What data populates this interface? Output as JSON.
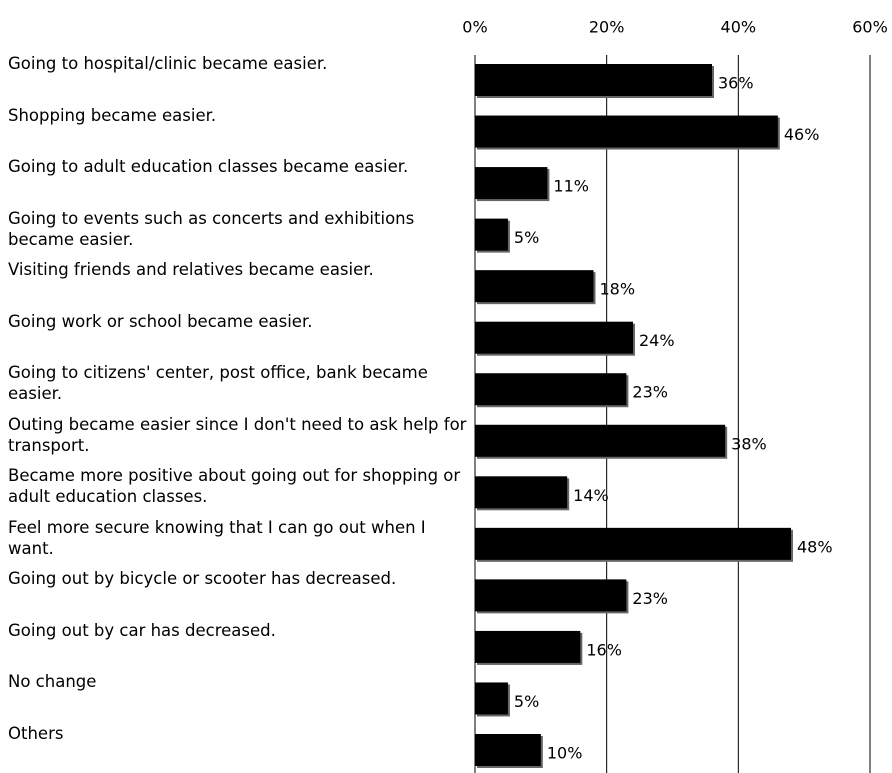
{
  "chart_data": {
    "type": "bar",
    "orientation": "horizontal",
    "categories": [
      "Going to hospital/clinic became easier.",
      "Shopping became easier.",
      "Going to adult education classes became easier.",
      "Going to events such as concerts and exhibitions became easier.",
      "Visiting friends and relatives became easier.",
      "Going work or school became easier.",
      "Going to citizens' center, post office, bank became easier.",
      "Outing became easier since I don't need to ask help for transport.",
      "Became more positive about going out for shopping or adult education classes.",
      "Feel more secure knowing that I can go out when I want.",
      "Going out by bicycle or scooter has decreased.",
      "Going out by car has decreased.",
      "No change",
      "Others"
    ],
    "values": [
      36,
      46,
      11,
      5,
      18,
      24,
      23,
      38,
      14,
      48,
      23,
      16,
      5,
      10
    ],
    "value_labels": [
      "36%",
      "46%",
      "11%",
      "5%",
      "18%",
      "24%",
      "23%",
      "38%",
      "14%",
      "48%",
      "23%",
      "16%",
      "5%",
      "10%"
    ],
    "color": "#000000",
    "xlim": [
      0,
      60
    ],
    "xticks": [
      {
        "value": 0,
        "label": "0%"
      },
      {
        "value": 20,
        "label": "20%"
      },
      {
        "value": 40,
        "label": "40%"
      },
      {
        "value": 60,
        "label": "60%"
      }
    ],
    "grid": true
  }
}
